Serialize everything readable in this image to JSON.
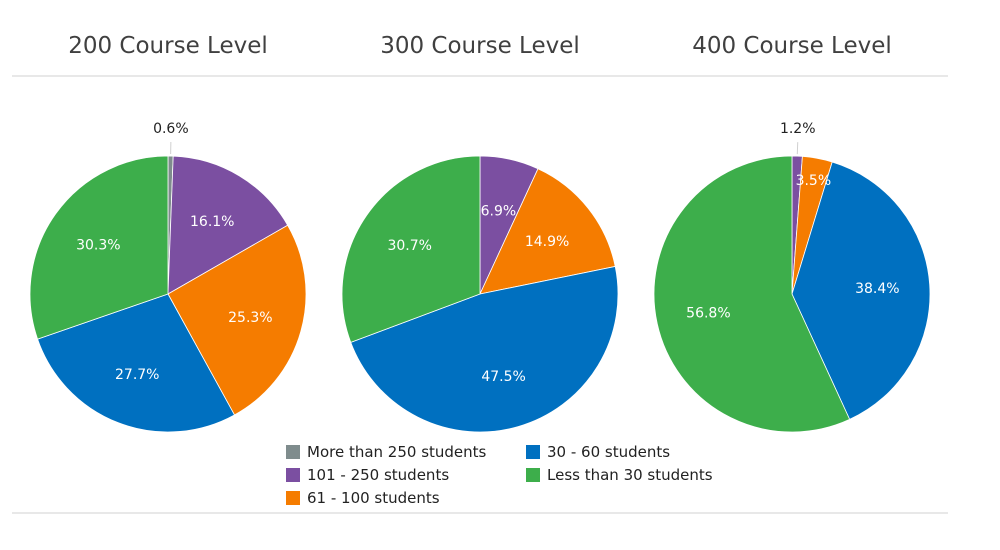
{
  "chart_data": [
    {
      "type": "pie",
      "title": "200 Course Level",
      "slices": [
        {
          "label": "More than 250 students",
          "value": 0.6,
          "display": "0.6%"
        },
        {
          "label": "101 - 250 students",
          "value": 16.1,
          "display": "16.1%"
        },
        {
          "label": "61 - 100 students",
          "value": 25.3,
          "display": "25.3%"
        },
        {
          "label": "30 - 60 students",
          "value": 27.7,
          "display": "27.7%"
        },
        {
          "label": "Less than 30 students",
          "value": 30.3,
          "display": "30.3%"
        }
      ]
    },
    {
      "type": "pie",
      "title": "300 Course Level",
      "slices": [
        {
          "label": "More than 250 students",
          "value": 0,
          "display": ""
        },
        {
          "label": "101 - 250 students",
          "value": 6.9,
          "display": "6.9%"
        },
        {
          "label": "61 - 100 students",
          "value": 14.9,
          "display": "14.9%"
        },
        {
          "label": "30 - 60 students",
          "value": 47.5,
          "display": "47.5%"
        },
        {
          "label": "Less than 30 students",
          "value": 30.7,
          "display": "30.7%"
        }
      ]
    },
    {
      "type": "pie",
      "title": "400 Course Level",
      "slices": [
        {
          "label": "More than 250 students",
          "value": 0,
          "display": ""
        },
        {
          "label": "101 - 250 students",
          "value": 1.2,
          "display": "1.2%"
        },
        {
          "label": "61 - 100 students",
          "value": 3.5,
          "display": "3.5%"
        },
        {
          "label": "30 - 60 students",
          "value": 38.4,
          "display": "38.4%"
        },
        {
          "label": "Less than 30 students",
          "value": 56.8,
          "display": "56.8%"
        }
      ]
    }
  ],
  "legend": {
    "placement": "bottom-center",
    "items": [
      {
        "label": "More than 250 students",
        "color": "#7f8c8d"
      },
      {
        "label": "30 - 60 students",
        "color": "#0070c0"
      },
      {
        "label": "101 - 250 students",
        "color": "#7b4fa1"
      },
      {
        "label": "Less than 30 students",
        "color": "#3dae4b"
      },
      {
        "label": "61 - 100 students",
        "color": "#f57c00"
      }
    ]
  },
  "colors": {
    "More than 250 students": "#7f8c8d",
    "101 - 250 students": "#7b4fa1",
    "61 - 100 students": "#f57c00",
    "30 - 60 students": "#0070c0",
    "Less than 30 students": "#3dae4b"
  }
}
